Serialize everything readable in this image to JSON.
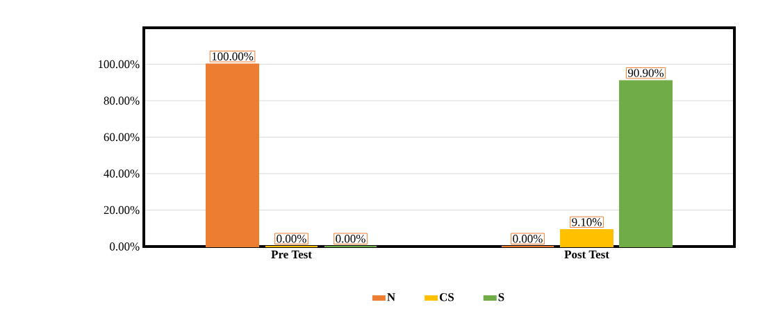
{
  "chart_data": {
    "type": "bar",
    "categories": [
      "Pre Test",
      "Post Test"
    ],
    "series": [
      {
        "name": "N",
        "color": "#ed7d31",
        "values": [
          100,
          0
        ],
        "value_labels": [
          "100.00%",
          "0.00%"
        ]
      },
      {
        "name": "CS",
        "color": "#ffc000",
        "values": [
          0,
          9.1
        ],
        "value_labels": [
          "0.00%",
          "9.10%"
        ]
      },
      {
        "name": "S",
        "color": "#70ad47",
        "values": [
          0,
          90.9
        ],
        "value_labels": [
          "0.00%",
          "90.90%"
        ]
      }
    ],
    "ylim": [
      0,
      120
    ],
    "yticks": [
      {
        "value": 0,
        "label": "0.00%"
      },
      {
        "value": 20,
        "label": "20.00%"
      },
      {
        "value": 40,
        "label": "40.00%"
      },
      {
        "value": 60,
        "label": "60.00%"
      },
      {
        "value": 80,
        "label": "80.00%"
      },
      {
        "value": 100,
        "label": "100.00%"
      }
    ],
    "grid": "y",
    "legend": "bottom"
  }
}
